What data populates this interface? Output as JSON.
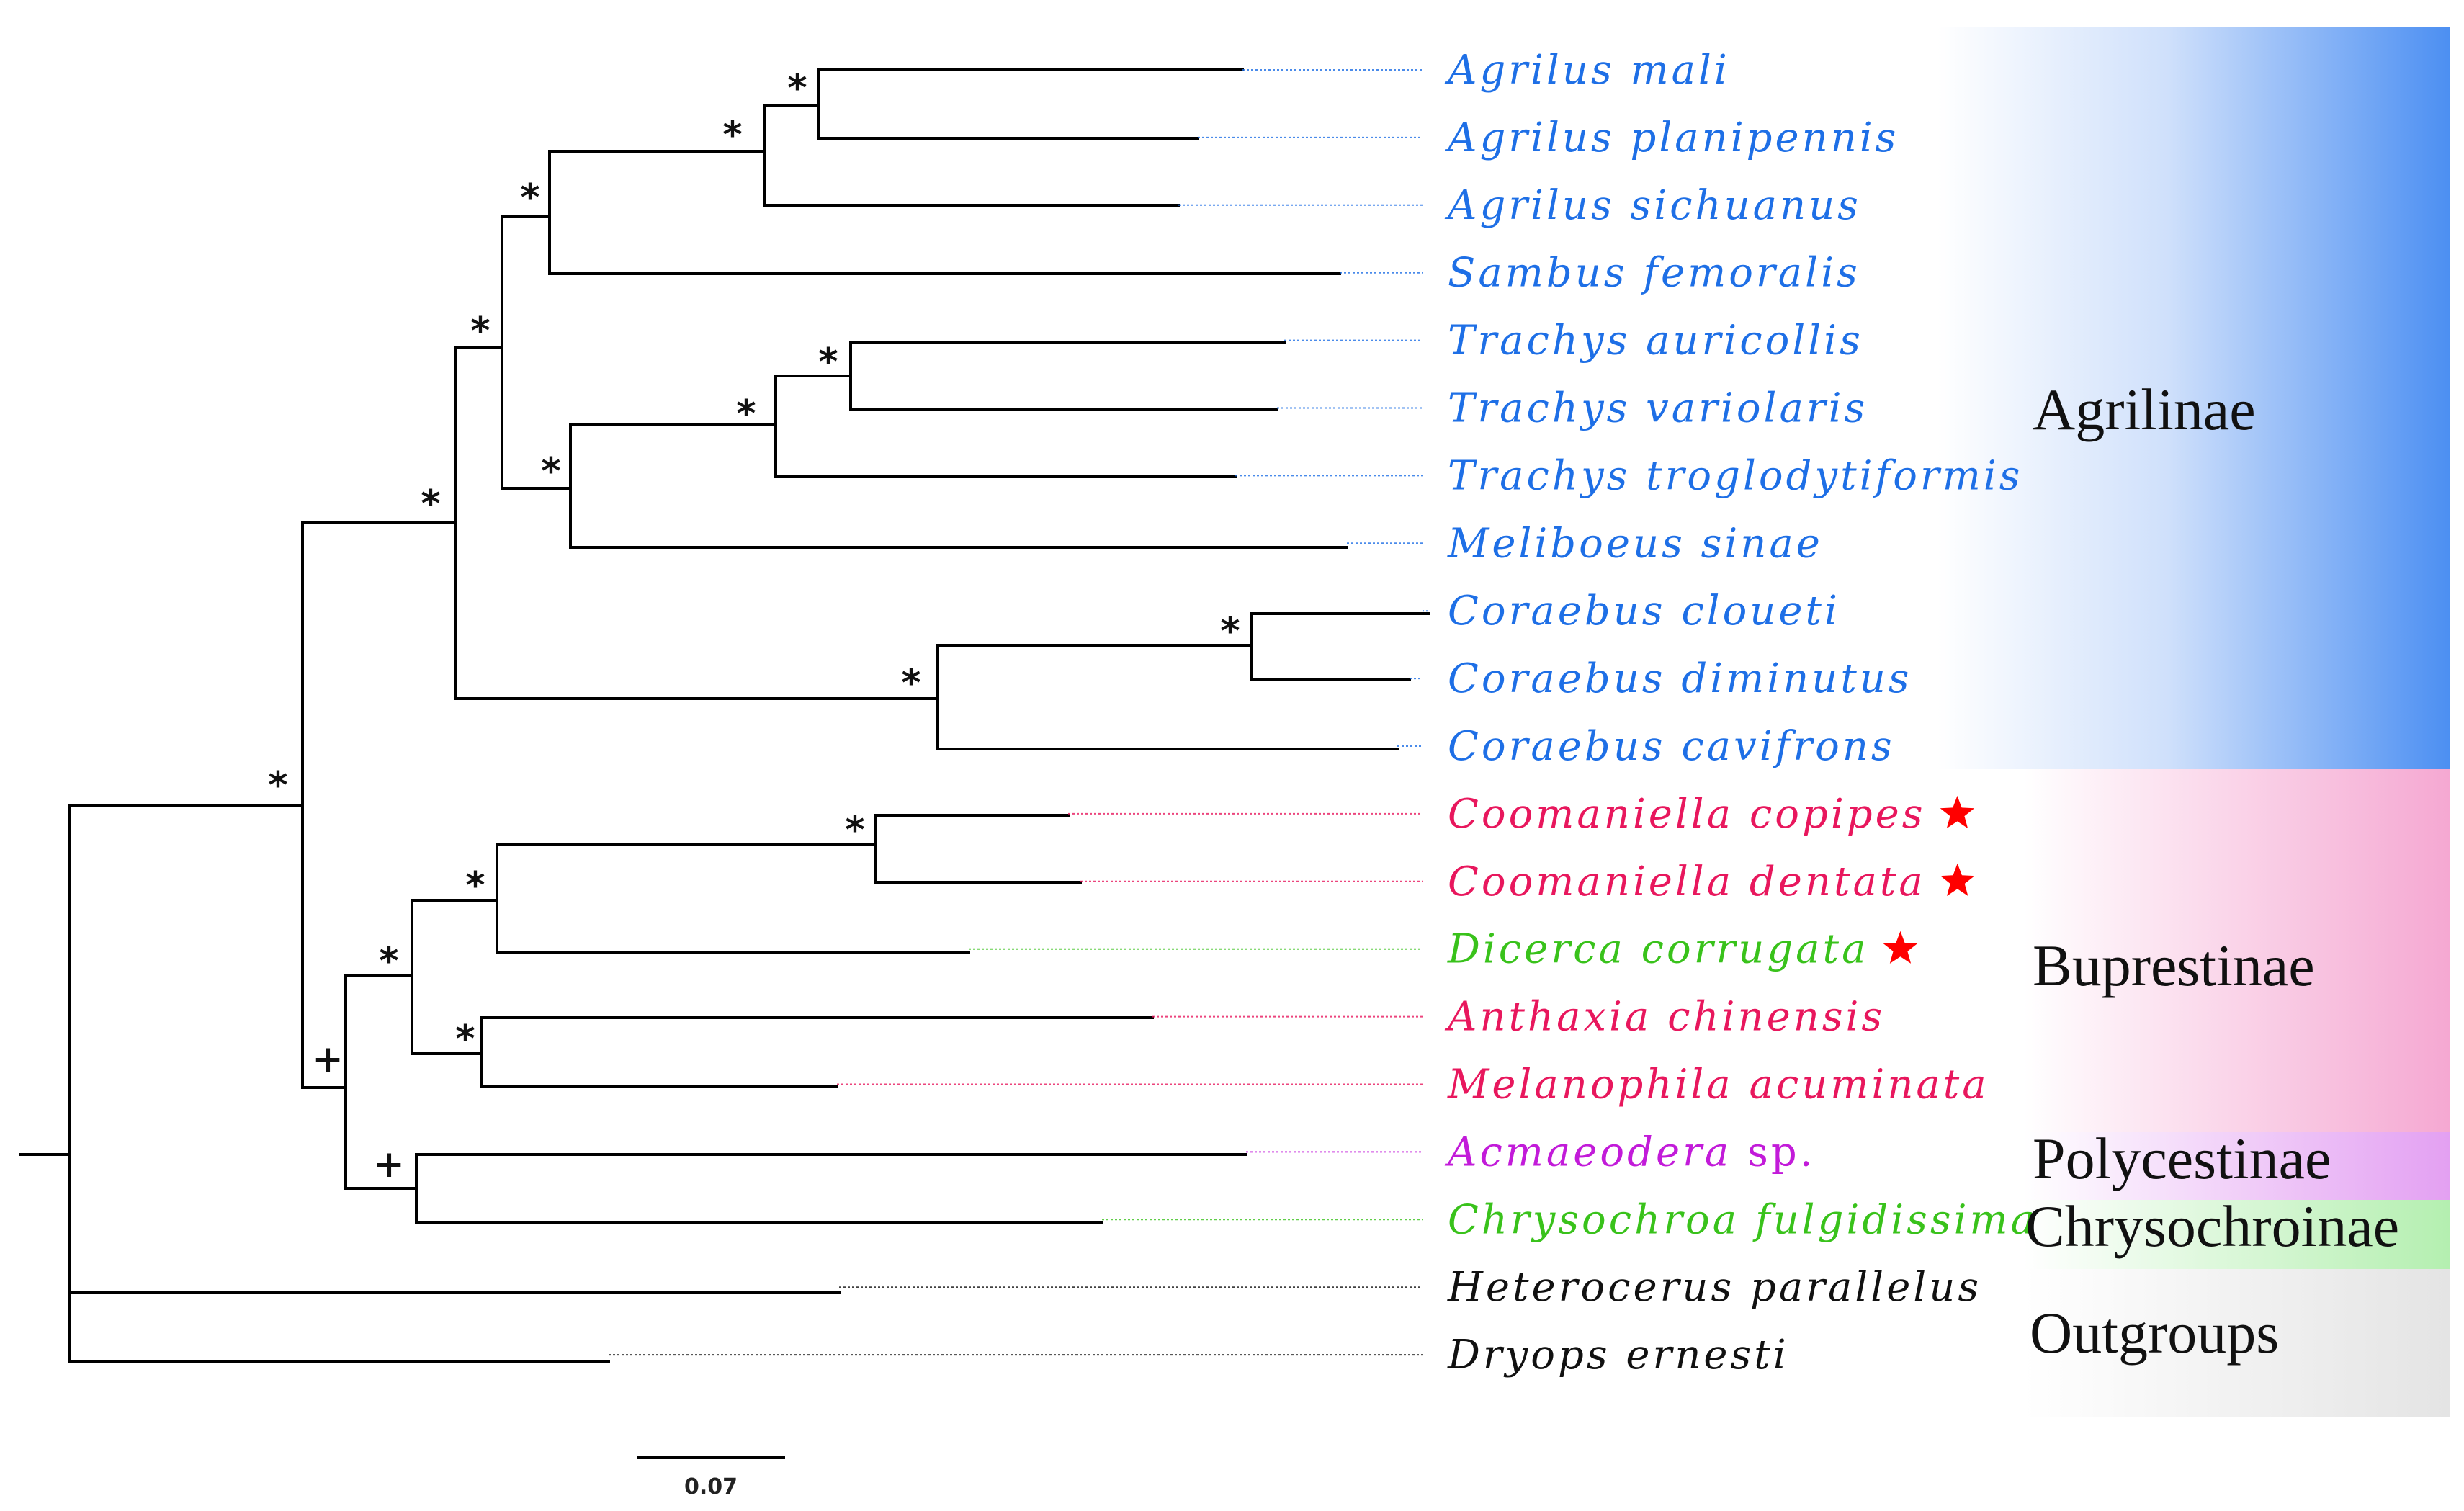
{
  "colors": {
    "agrilinae": "#1e6fe6",
    "buprestinae": "#e8175d",
    "green_taxa": "#39c21b",
    "polycestinae": "#c21bd9",
    "outgroups": "#111111",
    "star": "#ff0000",
    "band_agrilinae": "#4c8ff2",
    "band_buprestinae": "#f5a8d2",
    "band_polycestinae": "#e7a6f3",
    "band_chrysochroinae": "#b8f0b4",
    "band_outgroups": "#e6e6e6"
  },
  "taxa": [
    {
      "genus": "Agrilus",
      "species": "mali",
      "color": "#1e6fe6",
      "star": false
    },
    {
      "genus": "Agrilus",
      "species": "planipennis",
      "color": "#1e6fe6",
      "star": false
    },
    {
      "genus": "Agrilus",
      "species": "sichuanus",
      "color": "#1e6fe6",
      "star": false
    },
    {
      "genus": "Sambus",
      "species": "femoralis",
      "color": "#1e6fe6",
      "star": false
    },
    {
      "genus": "Trachys",
      "species": "auricollis",
      "color": "#1e6fe6",
      "star": false
    },
    {
      "genus": "Trachys",
      "species": "variolaris",
      "color": "#1e6fe6",
      "star": false
    },
    {
      "genus": "Trachys",
      "species": "troglodytiformis",
      "color": "#1e6fe6",
      "star": false
    },
    {
      "genus": "Meliboeus",
      "species": "sinae",
      "color": "#1e6fe6",
      "star": false
    },
    {
      "genus": "Coraebus",
      "species": "cloueti",
      "color": "#1e6fe6",
      "star": false
    },
    {
      "genus": "Coraebus",
      "species": "diminutus",
      "color": "#1e6fe6",
      "star": false
    },
    {
      "genus": "Coraebus",
      "species": "cavifrons",
      "color": "#1e6fe6",
      "star": false
    },
    {
      "genus": "Coomaniella",
      "species": "copipes",
      "color": "#e8175d",
      "star": true
    },
    {
      "genus": "Coomaniella",
      "species": "dentata",
      "color": "#e8175d",
      "star": true
    },
    {
      "genus": "Dicerca",
      "species": "corrugata",
      "color": "#39c21b",
      "star": true
    },
    {
      "genus": "Anthaxia",
      "species": "chinensis",
      "color": "#e8175d",
      "star": false
    },
    {
      "genus": "Melanophila",
      "species": "acuminata",
      "color": "#e8175d",
      "star": false
    },
    {
      "genus": "Acmaeodera",
      "species": "sp.",
      "color": "#c21bd9",
      "star": false,
      "species_upright": true
    },
    {
      "genus": "Chrysochroa",
      "species": "fulgidissima",
      "color": "#39c21b",
      "star": false
    },
    {
      "genus": "Heterocerus",
      "species": "parallelus",
      "color": "#111111",
      "star": false
    },
    {
      "genus": "Dryops",
      "species": "ernesti",
      "color": "#111111",
      "star": false
    }
  ],
  "clades": [
    {
      "name": "Agrilinae",
      "from": 0,
      "to": 10
    },
    {
      "name": "Buprestinae",
      "from": 11,
      "to": 15
    },
    {
      "name": "Polycestinae",
      "from": 16,
      "to": 16
    },
    {
      "name": "Chrysochroinae",
      "from": 17,
      "to": 17
    },
    {
      "name": "Outgroups",
      "from": 18,
      "to": 19
    }
  ],
  "support_symbols": {
    "strong": "*",
    "moderate": "+"
  },
  "scale_bar": {
    "label": "0.07",
    "value": 0.07
  }
}
